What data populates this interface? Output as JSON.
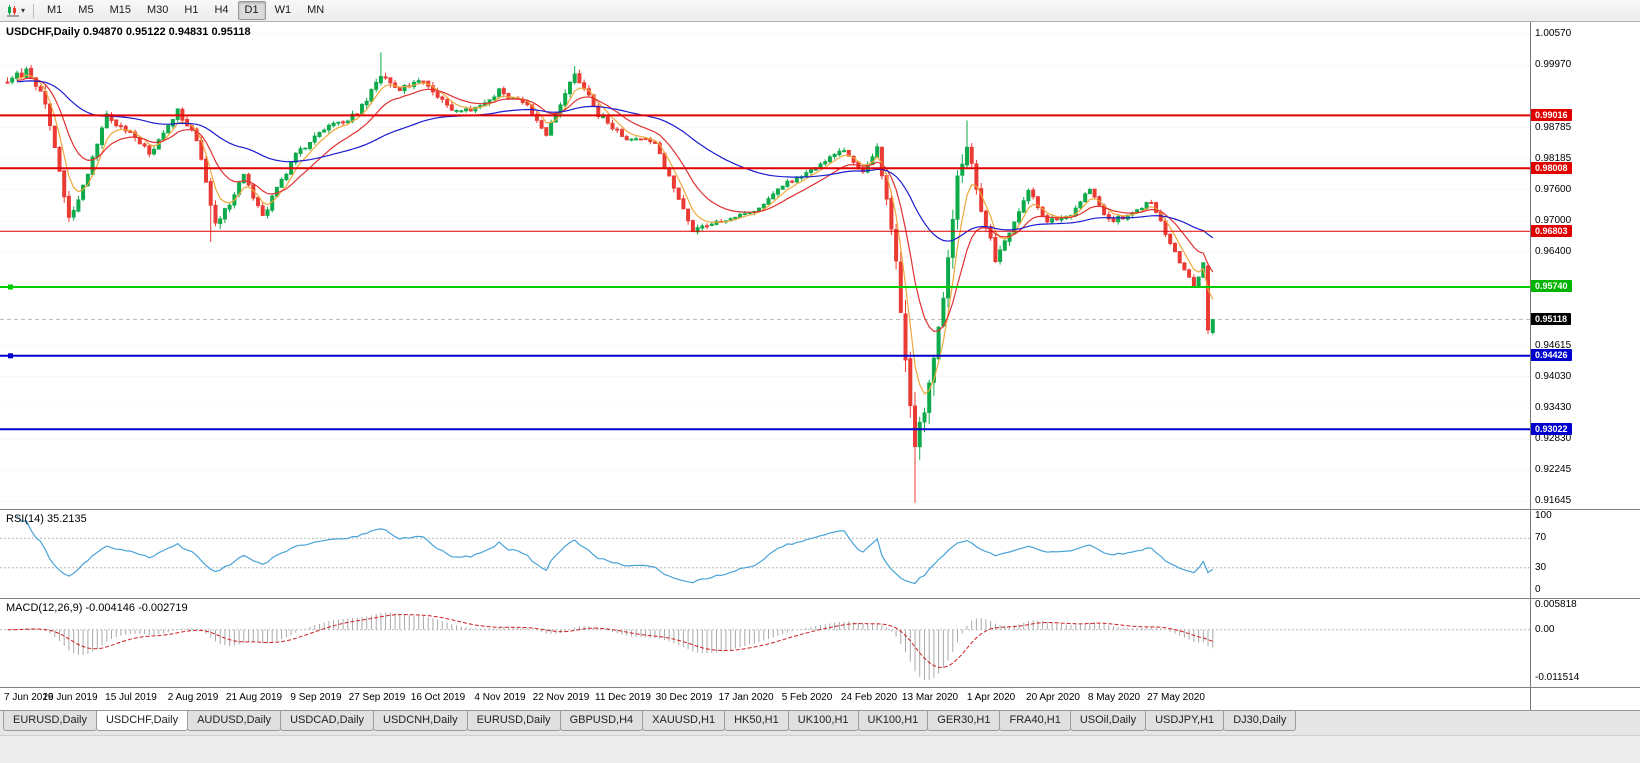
{
  "toolbar": {
    "icon": "candlestick-chart-icon",
    "dropdown_icon": "chevron-down-icon",
    "timeframes": [
      "M1",
      "M5",
      "M15",
      "M30",
      "H1",
      "H4",
      "D1",
      "W1",
      "MN"
    ],
    "active_timeframe": "D1"
  },
  "chart": {
    "readout": "USDCHF,Daily 0.94870 0.95122 0.94831 0.95118"
  },
  "panels": {
    "rsi_label": "RSI(14) 35.2135",
    "macd_label": "MACD(12,26,9) -0.004146 -0.002719"
  },
  "tabs": [
    {
      "label": "EURUSD,Daily",
      "active": false
    },
    {
      "label": "USDCHF,Daily",
      "active": true
    },
    {
      "label": "AUDUSD,Daily",
      "active": false
    },
    {
      "label": "USDCAD,Daily",
      "active": false
    },
    {
      "label": "USDCNH,Daily",
      "active": false
    },
    {
      "label": "EURUSD,Daily",
      "active": false
    },
    {
      "label": "GBPUSD,H4",
      "active": false
    },
    {
      "label": "XAUUSD,H1",
      "active": false
    },
    {
      "label": "HK50,H1",
      "active": false
    },
    {
      "label": "UK100,H1",
      "active": false
    },
    {
      "label": "UK100,H1",
      "active": false
    },
    {
      "label": "GER30,H1",
      "active": false
    },
    {
      "label": "FRA40,H1",
      "active": false
    },
    {
      "label": "USOil,Daily",
      "active": false
    },
    {
      "label": "USDJPY,H1",
      "active": false
    },
    {
      "label": "DJ30,Daily",
      "active": false
    }
  ],
  "chart_data": {
    "type": "candlestick",
    "symbol": "USDCHF",
    "timeframe": "Daily",
    "ohlc": {
      "open": 0.9487,
      "high": 0.95122,
      "low": 0.94831,
      "close": 0.95118
    },
    "price_range": [
      0.915,
      1.008
    ],
    "current_price": 0.95118,
    "colors": {
      "bull": "#0fab4b",
      "bear": "#ea3b34",
      "background": "#ffffff",
      "grid": "#e6e6e6"
    },
    "y_axis_labels": [
      {
        "text": "1.00570",
        "price": 1.0057
      },
      {
        "text": "0.99970",
        "price": 0.9997
      },
      {
        "text": "0.98785",
        "price": 0.98785
      },
      {
        "text": "0.98185",
        "price": 0.98185
      },
      {
        "text": "0.97600",
        "price": 0.976
      },
      {
        "text": "0.97000",
        "price": 0.97
      },
      {
        "text": "0.96400",
        "price": 0.964
      },
      {
        "text": "0.94615",
        "price": 0.94615
      },
      {
        "text": "0.94030",
        "price": 0.9403
      },
      {
        "text": "0.93430",
        "price": 0.9343
      },
      {
        "text": "0.92830",
        "price": 0.9283
      },
      {
        "text": "0.92245",
        "price": 0.92245
      },
      {
        "text": "0.91645",
        "price": 0.91645
      }
    ],
    "hlines": [
      {
        "label": "0.99016",
        "price": 0.99016,
        "color": "#e00000",
        "width": 2,
        "handle": false
      },
      {
        "label": "0.98008",
        "price": 0.98008,
        "color": "#e00000",
        "width": 2,
        "handle": false
      },
      {
        "label": "0.96803",
        "price": 0.96803,
        "color": "#e00000",
        "width": 1,
        "handle": false
      },
      {
        "label": "0.95740",
        "price": 0.9574,
        "color": "#00cc00",
        "width": 2,
        "handle": true
      },
      {
        "label": "0.94426",
        "price": 0.94426,
        "color": "#0000cc",
        "width": 2,
        "handle": true
      },
      {
        "label": "0.93022",
        "price": 0.93022,
        "color": "#0000cc",
        "width": 2,
        "handle": false
      }
    ],
    "price_tags": [
      {
        "text": "0.99016",
        "price": 0.99016,
        "bg": "#e00000"
      },
      {
        "text": "0.98008",
        "price": 0.98008,
        "bg": "#e00000"
      },
      {
        "text": "0.96803",
        "price": 0.96803,
        "bg": "#e00000"
      },
      {
        "text": "0.95740",
        "price": 0.9574,
        "bg": "#00b400"
      },
      {
        "text": "0.95118",
        "price": 0.95118,
        "bg": "#000000"
      },
      {
        "text": "0.94426",
        "price": 0.94426,
        "bg": "#0000cc"
      },
      {
        "text": "0.93022",
        "price": 0.93022,
        "bg": "#0000cc"
      }
    ],
    "moving_averages": [
      {
        "name": "ma-fast",
        "period": 5,
        "color": "#efa83c"
      },
      {
        "name": "ma-mid",
        "period": 13,
        "color": "#e03131"
      },
      {
        "name": "ma-slow",
        "period": 50,
        "color": "#1b1bd0"
      }
    ],
    "rsi": {
      "period": 14,
      "value": 35.2135,
      "color": "#4aa3d8",
      "axis_levels": [
        100,
        70,
        30,
        0
      ],
      "guide_levels": [
        70,
        30
      ]
    },
    "macd": {
      "fast": 12,
      "slow": 26,
      "signal": 9,
      "main_value": -0.004146,
      "signal_value": -0.002719,
      "histogram_color": "#a9a9a9",
      "signal_color": "#cc2222",
      "axis_labels": [
        {
          "text": "0.005818",
          "value": 0.005818
        },
        {
          "text": "0.00",
          "value": 0
        },
        {
          "text": "-0.011514",
          "value": -0.011514
        }
      ]
    },
    "x_labels": [
      {
        "idx": 0,
        "text": "7 Jun 2019"
      },
      {
        "idx": 13,
        "text": "26 Jun 2019"
      },
      {
        "idx": 26,
        "text": "15 Jul 2019"
      },
      {
        "idx": 39,
        "text": "2 Aug 2019"
      },
      {
        "idx": 52,
        "text": "21 Aug 2019"
      },
      {
        "idx": 65,
        "text": "9 Sep 2019"
      },
      {
        "idx": 78,
        "text": "27 Sep 2019"
      },
      {
        "idx": 91,
        "text": "16 Oct 2019"
      },
      {
        "idx": 104,
        "text": "4 Nov 2019"
      },
      {
        "idx": 117,
        "text": "22 Nov 2019"
      },
      {
        "idx": 130,
        "text": "11 Dec 2019"
      },
      {
        "idx": 143,
        "text": "30 Dec 2019"
      },
      {
        "idx": 156,
        "text": "17 Jan 2020"
      },
      {
        "idx": 169,
        "text": "5 Feb 2020"
      },
      {
        "idx": 182,
        "text": "24 Feb 2020"
      },
      {
        "idx": 195,
        "text": "13 Mar 2020"
      },
      {
        "idx": 208,
        "text": "1 Apr 2020"
      },
      {
        "idx": 221,
        "text": "20 Apr 2020"
      },
      {
        "idx": 234,
        "text": "8 May 2020"
      },
      {
        "idx": 247,
        "text": "27 May 2020"
      }
    ],
    "candles": {
      "count": 256,
      "seed": 11,
      "waypoints": [
        [
          0,
          0.9965,
          0.002
        ],
        [
          4,
          0.9988,
          0.0028
        ],
        [
          8,
          0.993,
          0.0028
        ],
        [
          13,
          0.9702,
          0.0024
        ],
        [
          16,
          0.9765,
          0.002
        ],
        [
          21,
          0.99,
          0.0018
        ],
        [
          26,
          0.9868,
          0.0016
        ],
        [
          30,
          0.9828,
          0.0016
        ],
        [
          36,
          0.9912,
          0.0018
        ],
        [
          40,
          0.9855,
          0.0022
        ],
        [
          44,
          0.97,
          0.0026
        ],
        [
          47,
          0.973,
          0.0018
        ],
        [
          50,
          0.9788,
          0.0015
        ],
        [
          54,
          0.9708,
          0.0016
        ],
        [
          61,
          0.9828,
          0.0015
        ],
        [
          68,
          0.9882,
          0.0015
        ],
        [
          74,
          0.9902,
          0.0015
        ],
        [
          79,
          0.9982,
          0.002
        ],
        [
          83,
          0.9948,
          0.0018
        ],
        [
          88,
          0.9972,
          0.0016
        ],
        [
          93,
          0.9918,
          0.0015
        ],
        [
          98,
          0.9908,
          0.0014
        ],
        [
          104,
          0.9948,
          0.0013
        ],
        [
          110,
          0.9918,
          0.0013
        ],
        [
          114,
          0.9868,
          0.0015
        ],
        [
          120,
          0.9985,
          0.0018
        ],
        [
          125,
          0.9902,
          0.0015
        ],
        [
          131,
          0.9858,
          0.0013
        ],
        [
          137,
          0.9852,
          0.0013
        ],
        [
          141,
          0.9758,
          0.0017
        ],
        [
          145,
          0.9682,
          0.0015
        ],
        [
          152,
          0.9704,
          0.0011
        ],
        [
          158,
          0.9718,
          0.0011
        ],
        [
          164,
          0.9768,
          0.0011
        ],
        [
          172,
          0.9808,
          0.0011
        ],
        [
          177,
          0.9838,
          0.0013
        ],
        [
          181,
          0.9792,
          0.0013
        ],
        [
          184,
          0.9842,
          0.0015
        ],
        [
          187,
          0.9695,
          0.003
        ],
        [
          190,
          0.9448,
          0.0055
        ],
        [
          192,
          0.9255,
          0.0075
        ],
        [
          195,
          0.9385,
          0.0055
        ],
        [
          198,
          0.9555,
          0.0048
        ],
        [
          201,
          0.9798,
          0.0046
        ],
        [
          203,
          0.9835,
          0.0036
        ],
        [
          206,
          0.9728,
          0.0028
        ],
        [
          209,
          0.9628,
          0.0022
        ],
        [
          212,
          0.9682,
          0.0018
        ],
        [
          216,
          0.9758,
          0.0016
        ],
        [
          220,
          0.97,
          0.0014
        ],
        [
          225,
          0.9714,
          0.0013
        ],
        [
          229,
          0.9762,
          0.0013
        ],
        [
          233,
          0.97,
          0.0013
        ],
        [
          238,
          0.9714,
          0.0011
        ],
        [
          242,
          0.9738,
          0.0011
        ],
        [
          246,
          0.9658,
          0.0013
        ],
        [
          249,
          0.9606,
          0.0013
        ],
        [
          251,
          0.9572,
          0.0013
        ],
        [
          253,
          0.9618,
          0.001
        ],
        [
          254,
          0.949,
          0.0012
        ],
        [
          255,
          0.95118,
          0.0005
        ]
      ],
      "spikes": [
        {
          "i": 5,
          "h": 0.9998
        },
        {
          "i": 43,
          "l": 0.966
        },
        {
          "i": 79,
          "h": 1.0022
        },
        {
          "i": 120,
          "h": 0.9996
        },
        {
          "i": 192,
          "l": 0.9162
        },
        {
          "i": 203,
          "h": 0.9892
        }
      ],
      "overrides": {
        "254": {
          "o": 0.9614,
          "h": 0.962,
          "l": 0.9484,
          "c": 0.9492
        },
        "255": {
          "o": 0.9487,
          "h": 0.95122,
          "l": 0.94831,
          "c": 0.95118
        }
      }
    }
  }
}
